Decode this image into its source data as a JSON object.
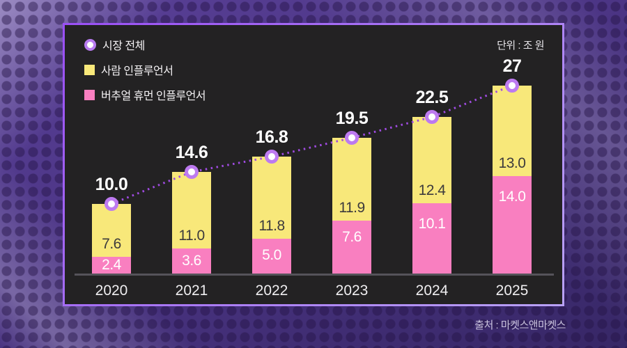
{
  "legend": {
    "items": [
      {
        "label": "시장 전체",
        "marker": "circle-donut",
        "ring_color": "#b87bf0"
      },
      {
        "label": "사람 인플루언서",
        "marker": "square",
        "color": "#f8e87a"
      },
      {
        "label": "버추얼 휴먼 인플루언서",
        "marker": "square",
        "color": "#f97fc0"
      }
    ]
  },
  "chart_data": {
    "type": "bar",
    "stacked": true,
    "unit_label": "단위 : 조 원",
    "categories": [
      "2020",
      "2021",
      "2022",
      "2023",
      "2024",
      "2025"
    ],
    "series": [
      {
        "name": "버추얼 휴먼 인플루언서",
        "color": "#f97fc0",
        "values": [
          2.4,
          3.6,
          5.0,
          7.6,
          10.1,
          14.0
        ],
        "labels": [
          "2.4",
          "3.6",
          "5.0",
          "7.6",
          "10.1",
          "14.0"
        ]
      },
      {
        "name": "사람 인플루언서",
        "color": "#f8e87a",
        "values": [
          7.6,
          11.0,
          11.8,
          11.9,
          12.4,
          13.0
        ],
        "labels": [
          "7.6",
          "11.0",
          "11.8",
          "11.9",
          "12.4",
          "13.0"
        ]
      }
    ],
    "line_series": {
      "name": "시장 전체",
      "values": [
        10.0,
        14.6,
        16.8,
        19.5,
        22.5,
        27
      ],
      "labels": [
        "10.0",
        "14.6",
        "16.8",
        "19.5",
        "22.5",
        "27"
      ],
      "line_color": "#9f4be0",
      "marker_ring_color": "#bd7af0",
      "marker_fill": "#ffffff"
    },
    "ylim": [
      0,
      28
    ],
    "grid": false,
    "legend_position": "top-left"
  },
  "footer": {
    "source": "출처 : 마켓스앤마켓스"
  }
}
